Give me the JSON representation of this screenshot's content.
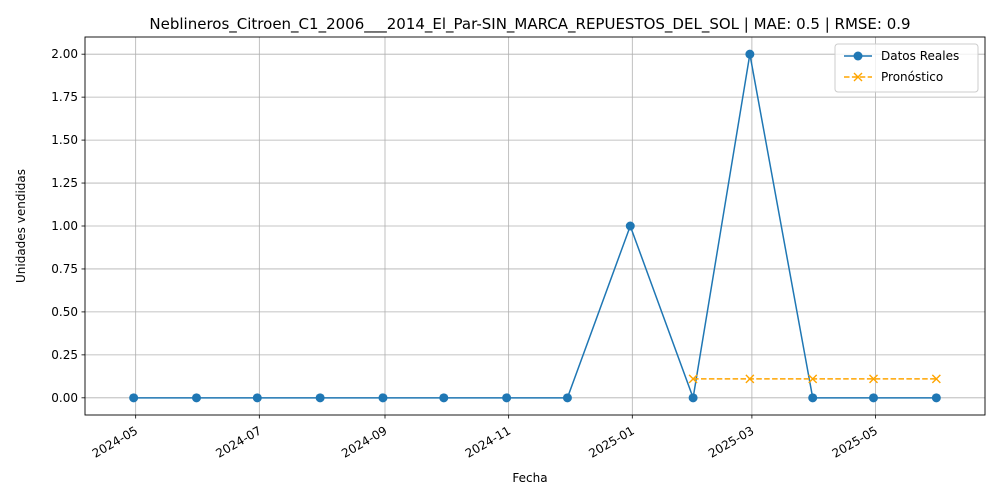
{
  "chart_data": {
    "type": "line",
    "title": "Neblineros_Citroen_C1_2006___2014_El_Par-SIN_MARCA_REPUESTOS_DEL_SOL | MAE: 0.5 | RMSE: 0.9",
    "xlabel": "Fecha",
    "ylabel": "Unidades vendidas",
    "x_axis": "date",
    "xlim": [
      "2024-04-06",
      "2025-06-24"
    ],
    "ylim": [
      -0.1,
      2.1
    ],
    "x_ticks": [
      "2024-05",
      "2024-07",
      "2024-09",
      "2024-11",
      "2025-01",
      "2025-03",
      "2025-05"
    ],
    "y_ticks": [
      "0.00",
      "0.25",
      "0.50",
      "0.75",
      "1.00",
      "1.25",
      "1.50",
      "1.75",
      "2.00"
    ],
    "grid": true,
    "legend_position": "top-right",
    "series": [
      {
        "name": "Datos Reales",
        "color": "#1f77b4",
        "linestyle": "solid",
        "marker": "circle",
        "x": [
          "2024-04-30",
          "2024-05-31",
          "2024-06-30",
          "2024-07-31",
          "2024-08-31",
          "2024-09-30",
          "2024-10-31",
          "2024-11-30",
          "2024-12-31",
          "2025-01-31",
          "2025-02-28",
          "2025-03-31",
          "2025-04-30",
          "2025-05-31"
        ],
        "values": [
          0,
          0,
          0,
          0,
          0,
          0,
          0,
          0,
          1,
          0,
          2,
          0,
          0,
          0
        ]
      },
      {
        "name": "Pronóstico",
        "color": "#ffa500",
        "linestyle": "dashed",
        "marker": "x",
        "x": [
          "2025-01-31",
          "2025-02-28",
          "2025-03-31",
          "2025-04-30",
          "2025-05-31"
        ],
        "values": [
          0.11,
          0.11,
          0.11,
          0.11,
          0.11
        ]
      }
    ]
  }
}
